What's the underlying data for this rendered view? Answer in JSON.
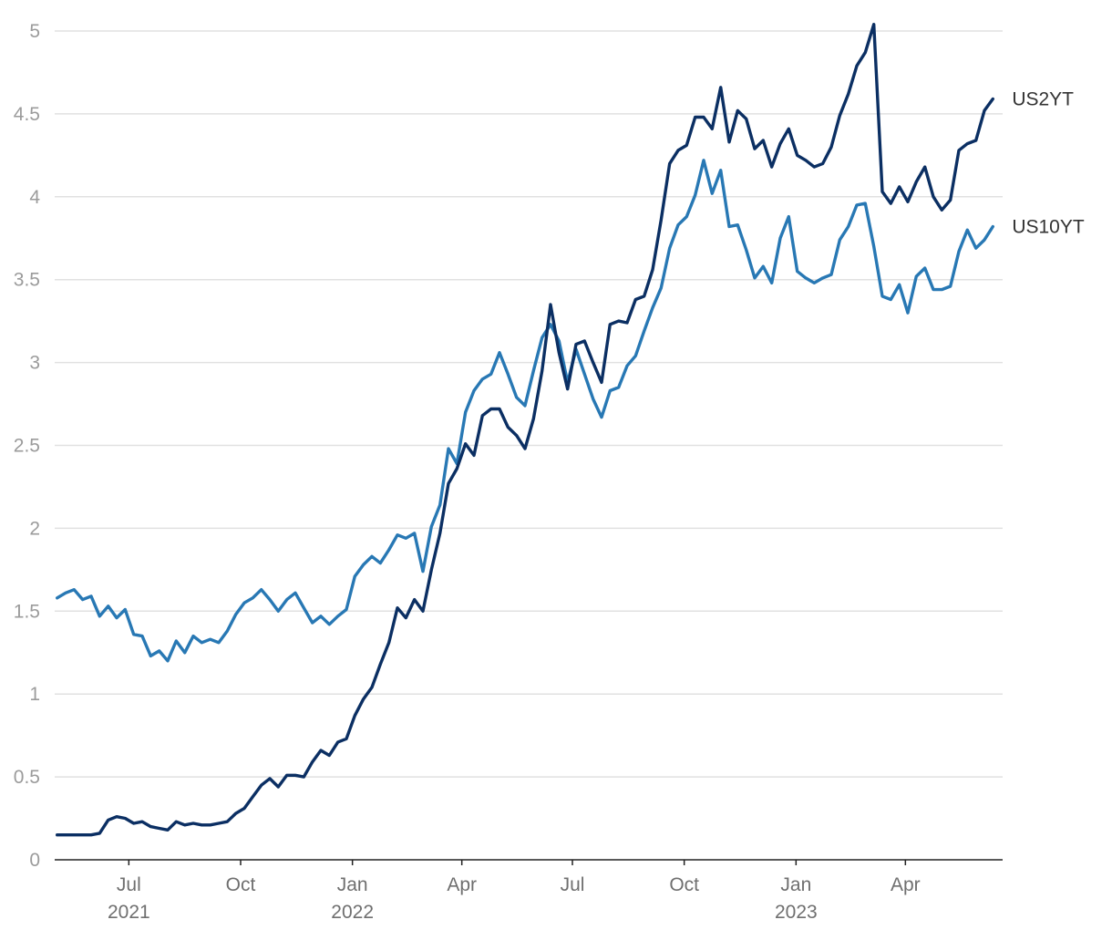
{
  "chart_data": {
    "type": "line",
    "title": "",
    "xlabel": "",
    "ylabel": "",
    "ylim": [
      0,
      5
    ],
    "xlim": [
      "2021-05-01",
      "2023-06-20"
    ],
    "grid": true,
    "y_ticks": [
      "0",
      "0.5",
      "1",
      "1.5",
      "2",
      "2.5",
      "3",
      "3.5",
      "4",
      "4.5",
      "5"
    ],
    "x_ticks": [
      {
        "date": "2021-07-01",
        "label": "Jul",
        "year": "2021"
      },
      {
        "date": "2021-10-01",
        "label": "Oct",
        "year": ""
      },
      {
        "date": "2022-01-01",
        "label": "Jan",
        "year": "2022"
      },
      {
        "date": "2022-04-01",
        "label": "Apr",
        "year": ""
      },
      {
        "date": "2022-07-01",
        "label": "Jul",
        "year": ""
      },
      {
        "date": "2022-10-01",
        "label": "Oct",
        "year": ""
      },
      {
        "date": "2023-01-01",
        "label": "Jan",
        "year": "2023"
      },
      {
        "date": "2023-04-01",
        "label": "Apr",
        "year": ""
      }
    ],
    "series": [
      {
        "name": "US10YT",
        "label": "US10YT",
        "color": "#2878b4",
        "points": [
          [
            "2021-05-03",
            1.58
          ],
          [
            "2021-05-10",
            1.61
          ],
          [
            "2021-05-17",
            1.63
          ],
          [
            "2021-05-24",
            1.57
          ],
          [
            "2021-05-31",
            1.59
          ],
          [
            "2021-06-07",
            1.47
          ],
          [
            "2021-06-14",
            1.53
          ],
          [
            "2021-06-21",
            1.46
          ],
          [
            "2021-06-28",
            1.51
          ],
          [
            "2021-07-05",
            1.36
          ],
          [
            "2021-07-12",
            1.35
          ],
          [
            "2021-07-19",
            1.23
          ],
          [
            "2021-07-26",
            1.26
          ],
          [
            "2021-08-02",
            1.2
          ],
          [
            "2021-08-09",
            1.32
          ],
          [
            "2021-08-16",
            1.25
          ],
          [
            "2021-08-23",
            1.35
          ],
          [
            "2021-08-30",
            1.31
          ],
          [
            "2021-09-06",
            1.33
          ],
          [
            "2021-09-13",
            1.31
          ],
          [
            "2021-09-20",
            1.38
          ],
          [
            "2021-09-27",
            1.48
          ],
          [
            "2021-10-04",
            1.55
          ],
          [
            "2021-10-11",
            1.58
          ],
          [
            "2021-10-18",
            1.63
          ],
          [
            "2021-10-25",
            1.57
          ],
          [
            "2021-11-01",
            1.5
          ],
          [
            "2021-11-08",
            1.57
          ],
          [
            "2021-11-15",
            1.61
          ],
          [
            "2021-11-22",
            1.52
          ],
          [
            "2021-11-29",
            1.43
          ],
          [
            "2021-12-06",
            1.47
          ],
          [
            "2021-12-13",
            1.42
          ],
          [
            "2021-12-20",
            1.47
          ],
          [
            "2021-12-27",
            1.51
          ],
          [
            "2022-01-03",
            1.71
          ],
          [
            "2022-01-10",
            1.78
          ],
          [
            "2022-01-17",
            1.83
          ],
          [
            "2022-01-24",
            1.79
          ],
          [
            "2022-01-31",
            1.87
          ],
          [
            "2022-02-07",
            1.96
          ],
          [
            "2022-02-14",
            1.94
          ],
          [
            "2022-02-21",
            1.97
          ],
          [
            "2022-02-28",
            1.74
          ],
          [
            "2022-03-07",
            2.01
          ],
          [
            "2022-03-14",
            2.14
          ],
          [
            "2022-03-21",
            2.48
          ],
          [
            "2022-03-28",
            2.39
          ],
          [
            "2022-04-04",
            2.7
          ],
          [
            "2022-04-11",
            2.83
          ],
          [
            "2022-04-18",
            2.9
          ],
          [
            "2022-04-25",
            2.93
          ],
          [
            "2022-05-02",
            3.06
          ],
          [
            "2022-05-09",
            2.93
          ],
          [
            "2022-05-16",
            2.79
          ],
          [
            "2022-05-23",
            2.74
          ],
          [
            "2022-05-30",
            2.95
          ],
          [
            "2022-06-06",
            3.15
          ],
          [
            "2022-06-13",
            3.23
          ],
          [
            "2022-06-20",
            3.13
          ],
          [
            "2022-06-27",
            2.88
          ],
          [
            "2022-07-04",
            3.08
          ],
          [
            "2022-07-11",
            2.93
          ],
          [
            "2022-07-18",
            2.78
          ],
          [
            "2022-07-25",
            2.67
          ],
          [
            "2022-08-01",
            2.83
          ],
          [
            "2022-08-08",
            2.85
          ],
          [
            "2022-08-15",
            2.98
          ],
          [
            "2022-08-22",
            3.04
          ],
          [
            "2022-08-29",
            3.19
          ],
          [
            "2022-09-05",
            3.33
          ],
          [
            "2022-09-12",
            3.45
          ],
          [
            "2022-09-19",
            3.69
          ],
          [
            "2022-09-26",
            3.83
          ],
          [
            "2022-10-03",
            3.88
          ],
          [
            "2022-10-10",
            4.01
          ],
          [
            "2022-10-17",
            4.22
          ],
          [
            "2022-10-24",
            4.02
          ],
          [
            "2022-10-31",
            4.16
          ],
          [
            "2022-11-07",
            3.82
          ],
          [
            "2022-11-14",
            3.83
          ],
          [
            "2022-11-21",
            3.68
          ],
          [
            "2022-11-28",
            3.51
          ],
          [
            "2022-12-05",
            3.58
          ],
          [
            "2022-12-12",
            3.48
          ],
          [
            "2022-12-19",
            3.75
          ],
          [
            "2022-12-26",
            3.88
          ],
          [
            "2023-01-02",
            3.55
          ],
          [
            "2023-01-09",
            3.51
          ],
          [
            "2023-01-16",
            3.48
          ],
          [
            "2023-01-23",
            3.51
          ],
          [
            "2023-01-30",
            3.53
          ],
          [
            "2023-02-06",
            3.74
          ],
          [
            "2023-02-13",
            3.82
          ],
          [
            "2023-02-20",
            3.95
          ],
          [
            "2023-02-27",
            3.96
          ],
          [
            "2023-03-06",
            3.7
          ],
          [
            "2023-03-13",
            3.4
          ],
          [
            "2023-03-20",
            3.38
          ],
          [
            "2023-03-27",
            3.47
          ],
          [
            "2023-04-03",
            3.3
          ],
          [
            "2023-04-10",
            3.52
          ],
          [
            "2023-04-17",
            3.57
          ],
          [
            "2023-04-24",
            3.44
          ],
          [
            "2023-05-01",
            3.44
          ],
          [
            "2023-05-08",
            3.46
          ],
          [
            "2023-05-15",
            3.67
          ],
          [
            "2023-05-22",
            3.8
          ],
          [
            "2023-05-29",
            3.69
          ],
          [
            "2023-06-05",
            3.74
          ],
          [
            "2023-06-12",
            3.82
          ]
        ]
      },
      {
        "name": "US2YT",
        "label": "US2YT",
        "color": "#0b2f63",
        "points": [
          [
            "2021-05-03",
            0.15
          ],
          [
            "2021-05-10",
            0.15
          ],
          [
            "2021-05-17",
            0.15
          ],
          [
            "2021-05-24",
            0.15
          ],
          [
            "2021-05-31",
            0.15
          ],
          [
            "2021-06-07",
            0.16
          ],
          [
            "2021-06-14",
            0.24
          ],
          [
            "2021-06-21",
            0.26
          ],
          [
            "2021-06-28",
            0.25
          ],
          [
            "2021-07-05",
            0.22
          ],
          [
            "2021-07-12",
            0.23
          ],
          [
            "2021-07-19",
            0.2
          ],
          [
            "2021-07-26",
            0.19
          ],
          [
            "2021-08-02",
            0.18
          ],
          [
            "2021-08-09",
            0.23
          ],
          [
            "2021-08-16",
            0.21
          ],
          [
            "2021-08-23",
            0.22
          ],
          [
            "2021-08-30",
            0.21
          ],
          [
            "2021-09-06",
            0.21
          ],
          [
            "2021-09-13",
            0.22
          ],
          [
            "2021-09-20",
            0.23
          ],
          [
            "2021-09-27",
            0.28
          ],
          [
            "2021-10-04",
            0.31
          ],
          [
            "2021-10-11",
            0.38
          ],
          [
            "2021-10-18",
            0.45
          ],
          [
            "2021-10-25",
            0.49
          ],
          [
            "2021-11-01",
            0.44
          ],
          [
            "2021-11-08",
            0.51
          ],
          [
            "2021-11-15",
            0.51
          ],
          [
            "2021-11-22",
            0.5
          ],
          [
            "2021-11-29",
            0.59
          ],
          [
            "2021-12-06",
            0.66
          ],
          [
            "2021-12-13",
            0.63
          ],
          [
            "2021-12-20",
            0.71
          ],
          [
            "2021-12-27",
            0.73
          ],
          [
            "2022-01-03",
            0.87
          ],
          [
            "2022-01-10",
            0.97
          ],
          [
            "2022-01-17",
            1.04
          ],
          [
            "2022-01-24",
            1.18
          ],
          [
            "2022-01-31",
            1.31
          ],
          [
            "2022-02-07",
            1.52
          ],
          [
            "2022-02-14",
            1.46
          ],
          [
            "2022-02-21",
            1.57
          ],
          [
            "2022-02-28",
            1.5
          ],
          [
            "2022-03-07",
            1.75
          ],
          [
            "2022-03-14",
            1.97
          ],
          [
            "2022-03-21",
            2.27
          ],
          [
            "2022-03-28",
            2.36
          ],
          [
            "2022-04-04",
            2.51
          ],
          [
            "2022-04-11",
            2.44
          ],
          [
            "2022-04-18",
            2.68
          ],
          [
            "2022-04-25",
            2.72
          ],
          [
            "2022-05-02",
            2.72
          ],
          [
            "2022-05-09",
            2.61
          ],
          [
            "2022-05-16",
            2.56
          ],
          [
            "2022-05-23",
            2.48
          ],
          [
            "2022-05-30",
            2.66
          ],
          [
            "2022-06-06",
            2.95
          ],
          [
            "2022-06-13",
            3.35
          ],
          [
            "2022-06-20",
            3.06
          ],
          [
            "2022-06-27",
            2.84
          ],
          [
            "2022-07-04",
            3.11
          ],
          [
            "2022-07-11",
            3.13
          ],
          [
            "2022-07-18",
            3.0
          ],
          [
            "2022-07-25",
            2.88
          ],
          [
            "2022-08-01",
            3.23
          ],
          [
            "2022-08-08",
            3.25
          ],
          [
            "2022-08-15",
            3.24
          ],
          [
            "2022-08-22",
            3.38
          ],
          [
            "2022-08-29",
            3.4
          ],
          [
            "2022-09-05",
            3.56
          ],
          [
            "2022-09-12",
            3.86
          ],
          [
            "2022-09-19",
            4.2
          ],
          [
            "2022-09-26",
            4.28
          ],
          [
            "2022-10-03",
            4.31
          ],
          [
            "2022-10-10",
            4.48
          ],
          [
            "2022-10-17",
            4.48
          ],
          [
            "2022-10-24",
            4.41
          ],
          [
            "2022-10-31",
            4.66
          ],
          [
            "2022-11-07",
            4.33
          ],
          [
            "2022-11-14",
            4.52
          ],
          [
            "2022-11-21",
            4.47
          ],
          [
            "2022-11-28",
            4.29
          ],
          [
            "2022-12-05",
            4.34
          ],
          [
            "2022-12-12",
            4.18
          ],
          [
            "2022-12-19",
            4.32
          ],
          [
            "2022-12-26",
            4.41
          ],
          [
            "2023-01-02",
            4.25
          ],
          [
            "2023-01-09",
            4.22
          ],
          [
            "2023-01-16",
            4.18
          ],
          [
            "2023-01-23",
            4.2
          ],
          [
            "2023-01-30",
            4.3
          ],
          [
            "2023-02-06",
            4.49
          ],
          [
            "2023-02-13",
            4.62
          ],
          [
            "2023-02-20",
            4.79
          ],
          [
            "2023-02-27",
            4.87
          ],
          [
            "2023-03-06",
            5.04
          ],
          [
            "2023-03-13",
            4.03
          ],
          [
            "2023-03-20",
            3.96
          ],
          [
            "2023-03-27",
            4.06
          ],
          [
            "2023-04-03",
            3.97
          ],
          [
            "2023-04-10",
            4.09
          ],
          [
            "2023-04-17",
            4.18
          ],
          [
            "2023-04-24",
            4.0
          ],
          [
            "2023-05-01",
            3.92
          ],
          [
            "2023-05-08",
            3.98
          ],
          [
            "2023-05-15",
            4.28
          ],
          [
            "2023-05-22",
            4.32
          ],
          [
            "2023-05-29",
            4.34
          ],
          [
            "2023-06-05",
            4.52
          ],
          [
            "2023-06-12",
            4.59
          ]
        ]
      }
    ]
  }
}
